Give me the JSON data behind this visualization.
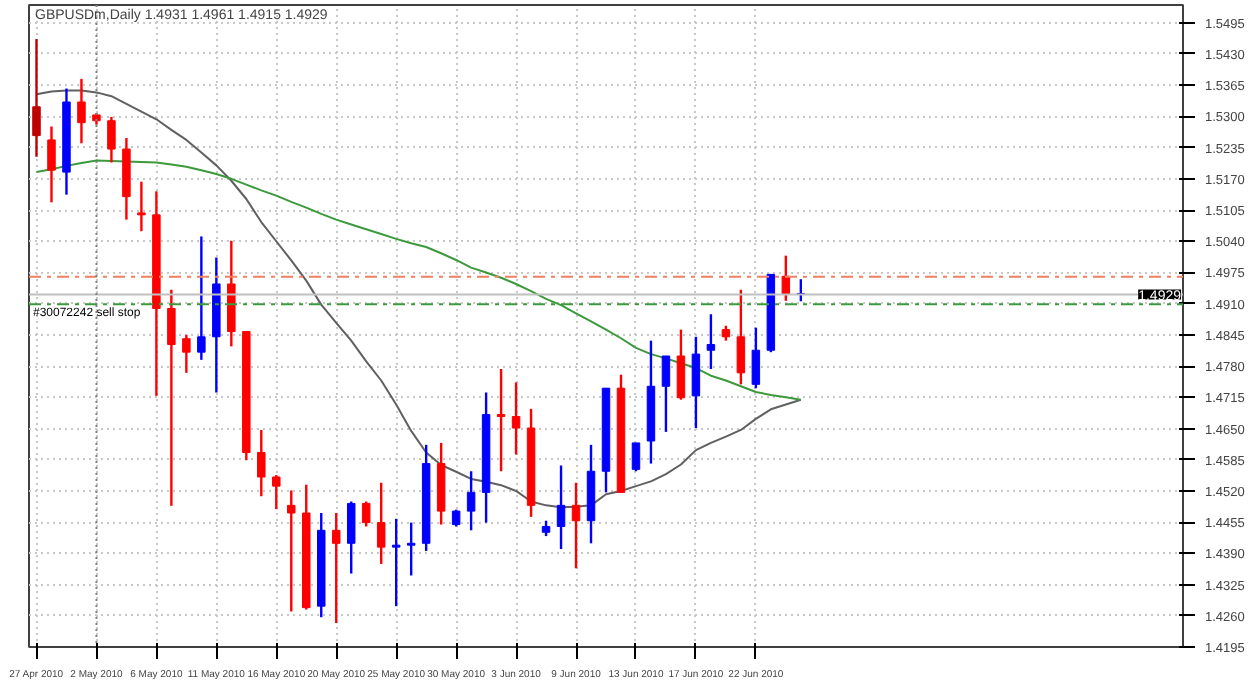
{
  "chart_data": {
    "type": "candlestick",
    "title": "GBPUSDm,Daily 1.4931 1.4961 1.4915 1.4929",
    "categories": [
      "27 Apr 2010",
      null,
      null,
      null,
      "2 May 2010",
      null,
      null,
      null,
      "6 May 2010",
      null,
      null,
      null,
      "11 May 2010",
      null,
      null,
      null,
      "16 May 2010",
      null,
      null,
      null,
      "20 May 2010",
      null,
      null,
      null,
      "25 May 2010",
      null,
      null,
      null,
      "30 May 2010",
      null,
      null,
      null,
      "3 Jun 2010",
      null,
      null,
      null,
      "9 Jun 2010",
      null,
      null,
      null,
      "13 Jun 2010",
      null,
      null,
      null,
      "17 Jun 2010",
      null,
      null,
      null,
      "22 Jun 2010",
      null,
      null,
      null,
      null,
      null,
      null,
      null,
      null,
      null,
      null,
      null,
      null,
      null,
      null,
      null,
      null,
      null,
      null,
      null,
      null,
      null,
      null,
      null,
      null,
      null,
      null,
      null,
      null
    ],
    "ohlc": [
      [
        1.532,
        1.5461,
        1.5216,
        1.526
      ],
      [
        1.5251,
        1.5279,
        1.5121,
        1.5188
      ],
      [
        1.5184,
        1.5358,
        1.5137,
        1.533
      ],
      [
        1.533,
        1.5378,
        1.5244,
        1.5287
      ],
      [
        1.5303,
        1.5307,
        1.5283,
        1.5291
      ],
      [
        1.5291,
        1.5299,
        1.5204,
        1.5232
      ],
      [
        1.5232,
        1.5255,
        1.5085,
        1.5133
      ],
      [
        1.5099,
        1.5164,
        1.5061,
        1.5095
      ],
      [
        1.5095,
        1.5144,
        1.4718,
        1.49
      ],
      [
        1.49,
        1.4939,
        1.4489,
        1.4825
      ],
      [
        1.4837,
        1.4845,
        1.4766,
        1.4809
      ],
      [
        1.4809,
        1.505,
        1.4793,
        1.4841
      ],
      [
        1.4841,
        1.5006,
        1.4725,
        1.4951
      ],
      [
        1.4951,
        1.5041,
        1.4821,
        1.4852
      ],
      [
        1.4852,
        1.4852,
        1.4584,
        1.46
      ],
      [
        1.46,
        1.4647,
        1.4509,
        1.4549
      ],
      [
        1.4549,
        1.4553,
        1.4482,
        1.453
      ],
      [
        1.449,
        1.4521,
        1.4269,
        1.4474
      ],
      [
        1.4474,
        1.4533,
        1.4273,
        1.4277
      ],
      [
        1.428,
        1.4474,
        1.4257,
        1.4438
      ],
      [
        1.4438,
        1.4474,
        1.4245,
        1.4411
      ],
      [
        1.4411,
        1.4498,
        1.4348,
        1.4494
      ],
      [
        1.4494,
        1.4498,
        1.4446,
        1.4454
      ],
      [
        1.4454,
        1.4537,
        1.4368,
        1.4403
      ],
      [
        1.4403,
        1.4462,
        1.428,
        1.4407
      ],
      [
        1.4407,
        1.4454,
        1.4344,
        1.4411
      ],
      [
        1.4411,
        1.4616,
        1.4395,
        1.4577
      ],
      [
        1.4577,
        1.462,
        1.445,
        1.4478
      ],
      [
        1.445,
        1.4481,
        1.4446,
        1.4478
      ],
      [
        1.4478,
        1.4561,
        1.4438,
        1.4517
      ],
      [
        1.4517,
        1.4725,
        1.4454,
        1.4679
      ],
      [
        1.4679,
        1.4774,
        1.4561,
        1.4675
      ],
      [
        1.4675,
        1.4746,
        1.4596,
        1.4651
      ],
      [
        1.4651,
        1.4691,
        1.4466,
        1.449
      ],
      [
        1.4434,
        1.4458,
        1.4426,
        1.4446
      ],
      [
        1.4446,
        1.4573,
        1.4399,
        1.449
      ],
      [
        1.449,
        1.4537,
        1.4359,
        1.4458
      ],
      [
        1.4458,
        1.4616,
        1.4411,
        1.4561
      ],
      [
        1.4561,
        1.4734,
        1.4517,
        1.4734
      ],
      [
        1.4734,
        1.4762,
        1.4517,
        1.4517
      ],
      [
        1.4565,
        1.462,
        1.4561,
        1.462
      ],
      [
        1.4624,
        1.4833,
        1.4577,
        1.4738
      ],
      [
        1.4738,
        1.4801,
        1.4643,
        1.4801
      ],
      [
        1.4801,
        1.4856,
        1.471,
        1.4714
      ],
      [
        1.4718,
        1.4841,
        1.4651,
        1.4805
      ],
      [
        1.4813,
        1.4888,
        1.4774,
        1.4825
      ],
      [
        1.4856,
        1.4864,
        1.4833,
        1.4841
      ],
      [
        1.4841,
        1.4939,
        1.4742,
        1.4766
      ],
      [
        1.4742,
        1.486,
        1.4734,
        1.4813
      ],
      [
        1.4813,
        1.4971,
        1.4809,
        1.4971
      ],
      [
        1.4967,
        1.501,
        1.4916,
        1.4931
      ],
      [
        1.4931,
        1.4961,
        1.4915,
        1.4929
      ],
      null,
      null,
      null,
      null,
      null,
      null,
      null,
      null,
      null,
      null,
      null,
      null,
      null,
      null,
      null,
      null,
      null,
      null,
      null,
      null,
      null,
      null,
      null,
      null,
      null
    ],
    "colors": [
      "#c00000",
      "#ff0000",
      "#0000ff",
      "#ff0000",
      "#ff0000",
      "#ff0000",
      "#ff0000",
      "#ff0000",
      "#ff0000",
      "#ff0000",
      "#ff0000",
      "#0000ff",
      "#0000ff",
      "#ff0000",
      "#ff0000",
      "#ff0000",
      "#ff0000",
      "#ff0000",
      "#ff0000",
      "#0000ff",
      "#ff0000",
      "#0000ff",
      "#ff0000",
      "#ff0000",
      "#0000ff",
      "#0000ff",
      "#0000ff",
      "#ff0000",
      "#0000ff",
      "#0000ff",
      "#0000ff",
      "#ff0000",
      "#ff0000",
      "#ff0000",
      "#0000ff",
      "#0000ff",
      "#ff0000",
      "#0000ff",
      "#0000ff",
      "#ff0000",
      "#0000ff",
      "#0000ff",
      "#0000ff",
      "#ff0000",
      "#0000ff",
      "#0000ff",
      "#ff0000",
      "#ff0000",
      "#0000ff",
      "#0000ff",
      "#ff0000",
      "#0000ff",
      null,
      null,
      null,
      null,
      null,
      null,
      null,
      null,
      null,
      null,
      null,
      null,
      null,
      null,
      null,
      null,
      null,
      null,
      null,
      null,
      null,
      null,
      null,
      null,
      null
    ],
    "series": [
      {
        "type": "line",
        "color": "#606060",
        "values": [
          1.5346,
          1.5352,
          1.5354,
          1.5354,
          1.535,
          1.5342,
          1.5326,
          1.531,
          1.5294,
          1.5272,
          1.5251,
          1.5225,
          1.5198,
          1.5166,
          1.5128,
          1.508,
          1.504,
          1.5,
          1.4958,
          1.4908,
          1.487,
          1.4833,
          1.479,
          1.475,
          1.47,
          1.4645,
          1.46,
          1.4574,
          1.456,
          1.4545,
          1.4539,
          1.4532,
          1.452,
          1.4498,
          1.449,
          1.4486,
          1.4487,
          1.449,
          1.4513,
          1.452,
          1.453,
          1.454,
          1.4555,
          1.4575,
          1.4605,
          1.462,
          1.4633,
          1.4647,
          1.467,
          1.469,
          1.47,
          1.471,
          null,
          null,
          null,
          null,
          null,
          null,
          null,
          null,
          null,
          null,
          null,
          null,
          null,
          null,
          null,
          null,
          null,
          null,
          null,
          null,
          null,
          null,
          null,
          null,
          null
        ]
      },
      {
        "type": "line",
        "color": "#3c9a3c",
        "values": [
          1.5184,
          1.519,
          1.5197,
          1.5203,
          1.5208,
          1.5207,
          1.5206,
          1.5205,
          1.5204,
          1.52,
          1.5195,
          1.5188,
          1.518,
          1.517,
          1.5158,
          1.5146,
          1.5135,
          1.5122,
          1.511,
          1.5097,
          1.5085,
          1.5075,
          1.5065,
          1.5055,
          1.5045,
          1.5036,
          1.5028,
          1.5015,
          1.5001,
          1.4985,
          1.4975,
          1.4964,
          1.4951,
          1.4936,
          1.492,
          1.4907,
          1.489,
          1.4873,
          1.4856,
          1.4838,
          1.4818,
          1.4805,
          1.4796,
          1.4786,
          1.4776,
          1.476,
          1.475,
          1.4738,
          1.4726,
          1.472,
          1.4715,
          1.471,
          null,
          null,
          null,
          null,
          null,
          null,
          null,
          null,
          null,
          null,
          null,
          null,
          null,
          null,
          null,
          null,
          null,
          null,
          null,
          null,
          null,
          null,
          null,
          null,
          null
        ]
      }
    ],
    "ylim": [
      1.4195,
      1.5532
    ],
    "yticks": [
      1.4195,
      {
        "value": 1.426,
        "label": "1.4260"
      },
      1.4325,
      {
        "value": 1.439,
        "label": "1.4390"
      },
      1.4455,
      {
        "value": 1.452,
        "label": "1.4520"
      },
      1.4585,
      {
        "value": 1.465,
        "label": "1.4650"
      },
      1.4715,
      {
        "value": 1.478,
        "label": "1.4780"
      },
      1.4845,
      {
        "value": 1.491,
        "label": "1.4910"
      },
      1.4975,
      {
        "value": 1.504,
        "label": "1.5040"
      },
      1.5105,
      {
        "value": 1.517,
        "label": "1.5170"
      },
      1.5235,
      {
        "value": 1.53,
        "label": "1.5300"
      },
      1.5365,
      {
        "value": 1.543,
        "label": "1.5430"
      },
      1.5495
    ],
    "grid": true,
    "ref_lines": [
      {
        "axis": "y",
        "value": 1.4966,
        "color": "#f08060",
        "line_style": "dashed"
      },
      {
        "axis": "y",
        "value": 1.4909,
        "label": "#30072242 sell stop",
        "color": "#3c9a3c",
        "line_style": "dashed"
      },
      {
        "axis": "y",
        "value": 1.4929,
        "label": "1.4929",
        "color": "#c0c0c0",
        "line_style": "solid"
      },
      {
        "axis": "x",
        "value": "2 May 2010",
        "color": "#808080",
        "line_style": "dotted"
      }
    ]
  }
}
